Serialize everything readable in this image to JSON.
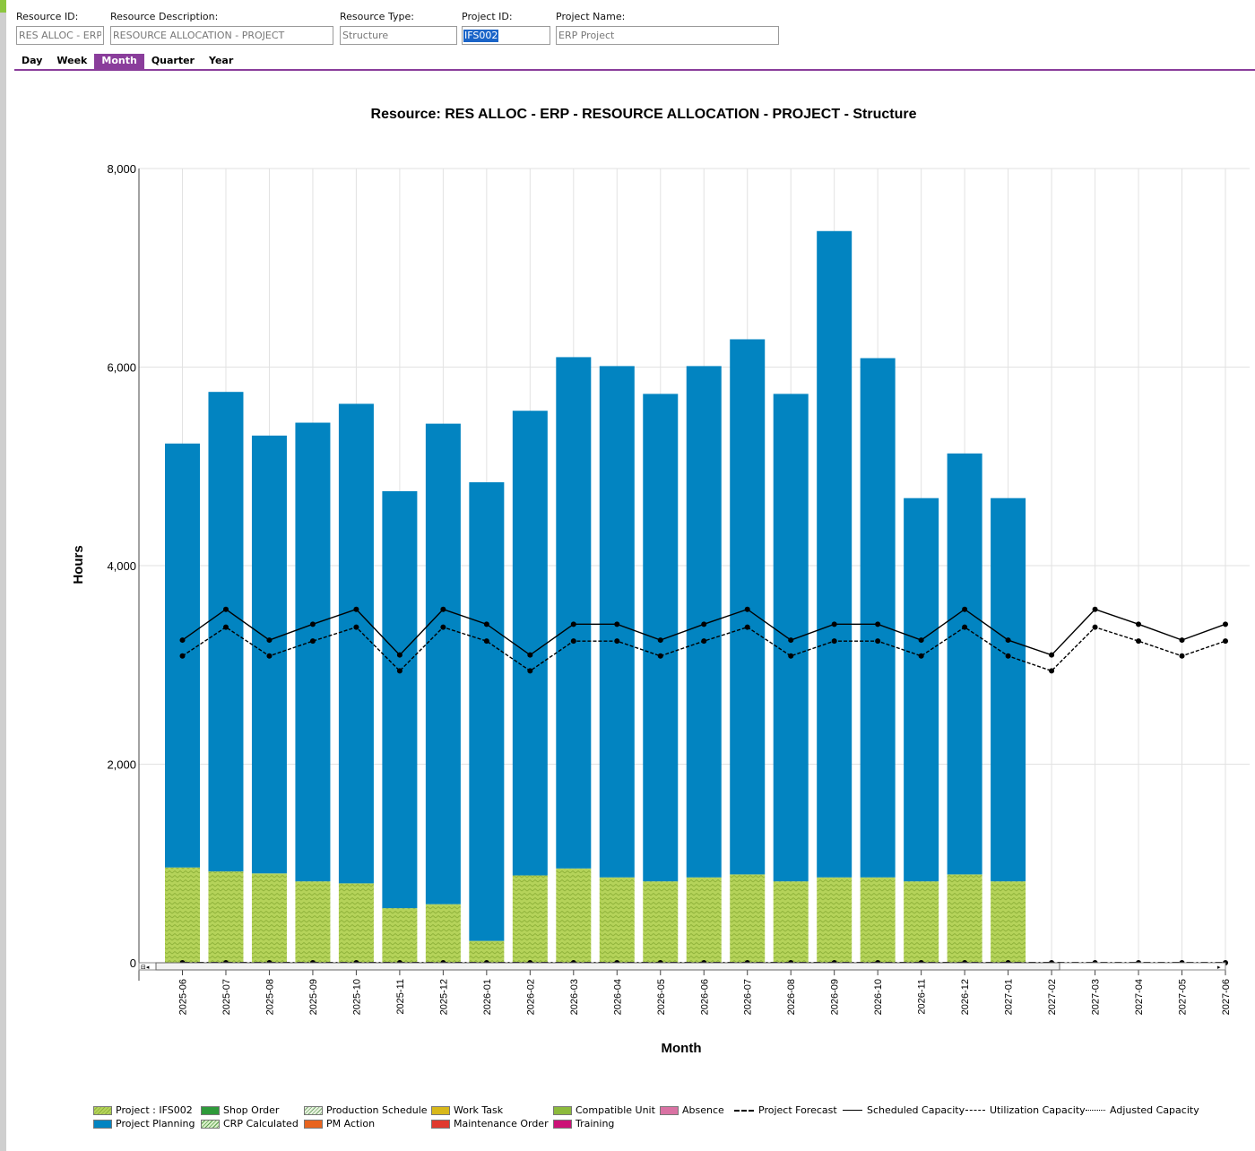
{
  "header": {
    "resource_id_label": "Resource ID:",
    "resource_id_value": "RES ALLOC - ERP",
    "resource_desc_label": "Resource Description:",
    "resource_desc_value": "RESOURCE ALLOCATION - PROJECT",
    "resource_type_label": "Resource Type:",
    "resource_type_value": "Structure",
    "project_id_label": "Project ID:",
    "project_id_value": "IFS002",
    "project_name_label": "Project Name:",
    "project_name_value": "ERP Project"
  },
  "tabs": [
    {
      "label": "Day",
      "active": false
    },
    {
      "label": "Week",
      "active": false
    },
    {
      "label": "Month",
      "active": true
    },
    {
      "label": "Quarter",
      "active": false
    },
    {
      "label": "Year",
      "active": false
    }
  ],
  "colors": {
    "project_planning": "#0284c1",
    "project_ifs002": "#b5d35a",
    "accent": "#8a3d9b"
  },
  "chart_data": {
    "type": "bar",
    "stacked": true,
    "title": "Resource: RES ALLOC - ERP - RESOURCE ALLOCATION - PROJECT - Structure",
    "xlabel": "Month",
    "ylabel": "Hours",
    "ylim": [
      0,
      8000
    ],
    "yticks": [
      "0",
      "2,000",
      "4,000",
      "6,000",
      "8,000"
    ],
    "grid": true,
    "legend_position": "bottom",
    "categories": [
      "2025-06",
      "2025-07",
      "2025-08",
      "2025-09",
      "2025-10",
      "2025-11",
      "2025-12",
      "2026-01",
      "2026-02",
      "2026-03",
      "2026-04",
      "2026-05",
      "2026-06",
      "2026-07",
      "2026-08",
      "2026-09",
      "2026-10",
      "2026-11",
      "2026-12",
      "2027-01",
      "2027-02",
      "2027-03",
      "2027-04",
      "2027-05",
      "2027-06"
    ],
    "series": [
      {
        "name": "Project : IFS002",
        "kind": "bar",
        "color": "#b5d35a",
        "values": [
          960,
          920,
          900,
          820,
          800,
          550,
          590,
          220,
          880,
          950,
          860,
          820,
          860,
          890,
          820,
          860,
          860,
          820,
          890,
          820,
          0,
          0,
          0,
          0,
          0
        ]
      },
      {
        "name": "Project Planning",
        "kind": "bar",
        "color": "#0284c1",
        "values": [
          4270,
          4830,
          4410,
          4620,
          4830,
          4200,
          4840,
          4620,
          4680,
          5150,
          5150,
          4910,
          5150,
          5390,
          4910,
          6510,
          5230,
          3860,
          4240,
          3860,
          0,
          0,
          0,
          0,
          0
        ]
      },
      {
        "name": "Scheduled Capacity",
        "kind": "line",
        "style": "solid",
        "values": [
          3250,
          3560,
          3250,
          3410,
          3560,
          3100,
          3560,
          3410,
          3100,
          3410,
          3410,
          3250,
          3410,
          3560,
          3250,
          3410,
          3410,
          3250,
          3560,
          3250,
          3100,
          3560,
          3410,
          3250,
          3410
        ]
      },
      {
        "name": "Utilization Capacity",
        "kind": "line",
        "style": "dashed",
        "values": [
          3090,
          3380,
          3090,
          3240,
          3380,
          2940,
          3380,
          3240,
          2940,
          3240,
          3240,
          3090,
          3240,
          3380,
          3090,
          3240,
          3240,
          3090,
          3380,
          3090,
          2940,
          3380,
          3240,
          3090,
          3240
        ]
      },
      {
        "name": "Project Forecast",
        "kind": "line",
        "style": "dashdot",
        "values": [
          0,
          0,
          0,
          0,
          0,
          0,
          0,
          0,
          0,
          0,
          0,
          0,
          0,
          0,
          0,
          0,
          0,
          0,
          0,
          0,
          0,
          0,
          0,
          0,
          0
        ]
      }
    ],
    "legend": [
      {
        "name": "Project : IFS002",
        "type": "hatch",
        "color": "#b5d35a"
      },
      {
        "name": "Project Planning",
        "type": "fill",
        "color": "#0284c1"
      },
      {
        "name": "Shop Order",
        "type": "fill",
        "color": "#2e9a3a"
      },
      {
        "name": "CRP Calculated",
        "type": "hatch",
        "color": "#8fd48a"
      },
      {
        "name": "Production Schedule",
        "type": "hatch",
        "color": "#bfe3b4"
      },
      {
        "name": "PM Action",
        "type": "fill",
        "color": "#e8641e"
      },
      {
        "name": "Work Task",
        "type": "fill",
        "color": "#d8b81a"
      },
      {
        "name": "Maintenance Order",
        "type": "fill",
        "color": "#e03a2e"
      },
      {
        "name": "Compatible Unit",
        "type": "fill",
        "color": "#8cba3c"
      },
      {
        "name": "Training",
        "type": "fill",
        "color": "#cc1177"
      },
      {
        "name": "Absence",
        "type": "fill",
        "color": "#d972a3"
      },
      {
        "name": "Project Forecast",
        "type": "line",
        "style": "dashdot"
      },
      {
        "name": "Scheduled Capacity",
        "type": "line",
        "style": "solid"
      },
      {
        "name": "Utilization Capacity",
        "type": "line",
        "style": "dashed"
      },
      {
        "name": "Adjusted Capacity",
        "type": "line",
        "style": "dotted"
      }
    ]
  }
}
